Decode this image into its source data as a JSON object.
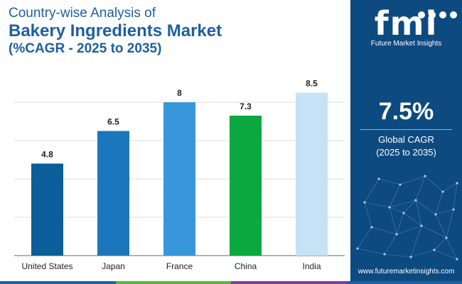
{
  "title": {
    "line1": "Country-wise Analysis of",
    "line2": "Bakery Ingredients Market",
    "line3": "(%CAGR - 2025 to 2035)"
  },
  "chart_data": {
    "type": "bar",
    "categories": [
      "United States",
      "Japan",
      "France",
      "China",
      "India"
    ],
    "values": [
      4.8,
      6.5,
      8,
      7.3,
      8.5
    ],
    "value_labels": [
      "4.8",
      "6.5",
      "8",
      "7.3",
      "8.5"
    ],
    "bar_colors": [
      "#0b5e9a",
      "#1b76bb",
      "#3897db",
      "#0aa83e",
      "#c5e2f6"
    ],
    "ylim": [
      0,
      10
    ],
    "grid": true,
    "legend": "none"
  },
  "panel": {
    "logo_mark": "fmi",
    "logo_text": "Future Market Insights",
    "cagr_value": "7.5%",
    "cagr_label_line1": "Global CAGR",
    "cagr_label_line2": "(2025 to 2035)",
    "website": "www.futuremarketinsights.com",
    "background_color": "#0d4a80"
  },
  "bottom_bar_colors": [
    "#1f5fa3",
    "#5fb53a",
    "#7a3f97",
    "#1f5fa3"
  ]
}
